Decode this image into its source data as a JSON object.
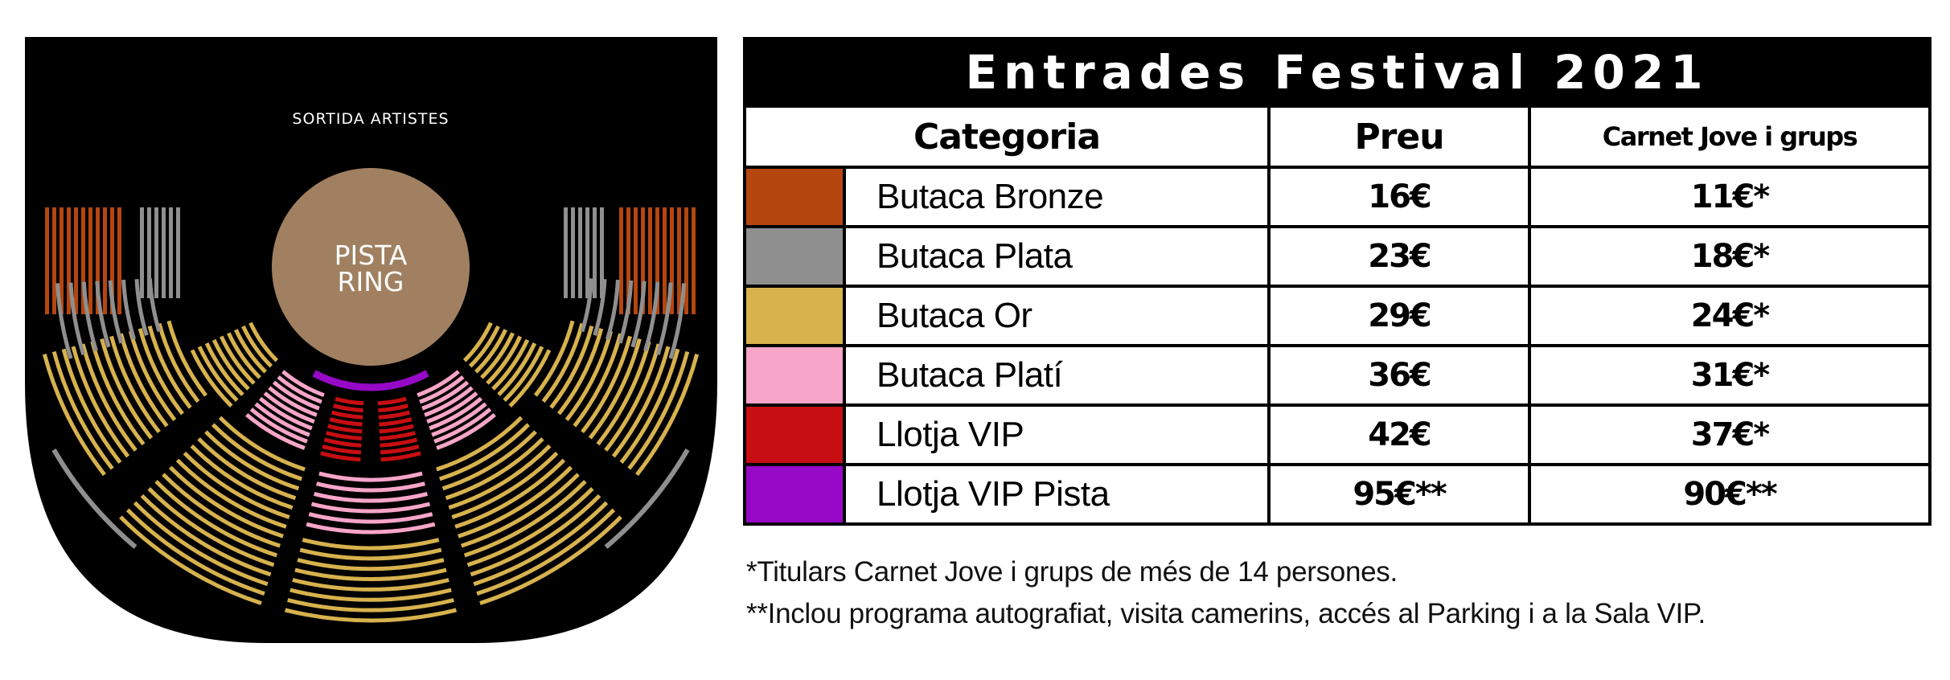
{
  "seating_map": {
    "exit_label": "SORTIDA ARTISTES",
    "ring_label_line1": "PISTA",
    "ring_label_line2": "RING",
    "background_color": "#000000",
    "ring_color": "#a08060"
  },
  "prices_table": {
    "title": "Entrades Festival 2021",
    "headers": [
      "Categoria",
      "Preu",
      "Carnet Jove i grups"
    ],
    "rows": [
      {
        "color": "#b5460f",
        "name": "Butaca Bronze",
        "price": "16€",
        "discount_price": "11€*"
      },
      {
        "color": "#8f8f8f",
        "name": "Butaca Plata",
        "price": "23€",
        "discount_price": "18€*"
      },
      {
        "color": "#d7b24d",
        "name": "Butaca Or",
        "price": "29€",
        "discount_price": "24€*"
      },
      {
        "color": "#f7a5c8",
        "name": "Butaca Platí",
        "price": "36€",
        "discount_price": "31€*"
      },
      {
        "color": "#c70e12",
        "name": "Llotja VIP",
        "price": "42€",
        "discount_price": "37€*"
      },
      {
        "color": "#9609c7",
        "name": "Llotja VIP Pista",
        "price": "95€**",
        "discount_price": "90€**"
      }
    ]
  },
  "footnotes": [
    "*Titulars Carnet Jove i grups de més de 14 persones.",
    "**Inclou programa autografiat, visita camerins, accés al Parking i a la Sala VIP."
  ],
  "colors": {
    "bronze": "#b5460f",
    "silver": "#8f8f8f",
    "gold": "#d7b24d",
    "platinum": "#f7a5c8",
    "vip": "#c70e12",
    "vip_ring": "#9609c7"
  }
}
